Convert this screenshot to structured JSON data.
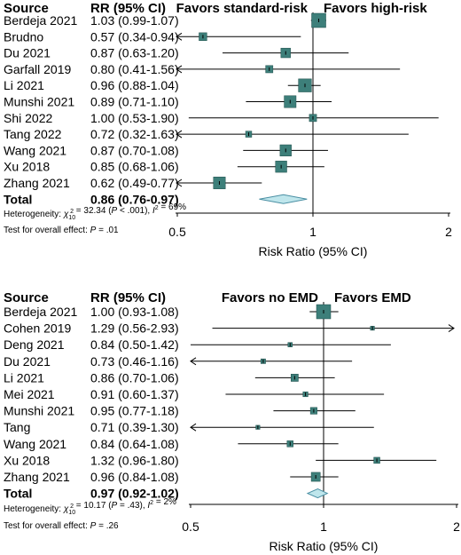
{
  "chart_data": [
    {
      "type": "forest",
      "header": {
        "source": "Source",
        "rr": "RR (95% CI)",
        "favors_left": "Favors standard-risk",
        "favors_right": "Favors high-risk"
      },
      "studies": [
        {
          "label": "Berdeja 2021",
          "ci_text": "1.03 (0.99-1.07)",
          "rr": 1.03,
          "lo": 0.99,
          "hi": 1.07,
          "w": 1.0
        },
        {
          "label": "Brudno",
          "ci_text": "0.57 (0.34-0.94)",
          "rr": 0.57,
          "lo": 0.34,
          "hi": 0.94,
          "w": 0.45
        },
        {
          "label": "Du 2021",
          "ci_text": "0.87 (0.63-1.20)",
          "rr": 0.87,
          "lo": 0.63,
          "hi": 1.2,
          "w": 0.6
        },
        {
          "label": "Garfall 2019",
          "ci_text": "0.80 (0.41-1.56)",
          "rr": 0.8,
          "lo": 0.41,
          "hi": 1.56,
          "w": 0.4
        },
        {
          "label": "Li 2021",
          "ci_text": "0.96 (0.88-1.04)",
          "rr": 0.96,
          "lo": 0.88,
          "hi": 1.04,
          "w": 0.9
        },
        {
          "label": "Munshi 2021",
          "ci_text": "0.89 (0.71-1.10)",
          "rr": 0.89,
          "lo": 0.71,
          "hi": 1.1,
          "w": 0.8
        },
        {
          "label": "Shi 2022",
          "ci_text": "1.00 (0.53-1.90)",
          "rr": 1.0,
          "lo": 0.53,
          "hi": 1.9,
          "w": 0.4
        },
        {
          "label": "Tang 2022",
          "ci_text": "0.72 (0.32-1.63)",
          "rr": 0.72,
          "lo": 0.32,
          "hi": 1.63,
          "w": 0.3
        },
        {
          "label": "Wang 2021",
          "ci_text": "0.87 (0.70-1.08)",
          "rr": 0.87,
          "lo": 0.7,
          "hi": 1.08,
          "w": 0.75
        },
        {
          "label": "Xu 2018",
          "ci_text": "0.85 (0.68-1.06)",
          "rr": 0.85,
          "lo": 0.68,
          "hi": 1.06,
          "w": 0.75
        },
        {
          "label": "Zhang 2021",
          "ci_text": "0.62 (0.49-0.77)",
          "rr": 0.62,
          "lo": 0.49,
          "hi": 0.77,
          "w": 0.8
        }
      ],
      "total": {
        "label": "Total",
        "ci_text": "0.86 (0.76-0.97)",
        "rr": 0.86,
        "lo": 0.76,
        "hi": 0.97
      },
      "heterogeneity": {
        "prefix": "Heterogeneity: ",
        "chi": "χ",
        "sub": "10",
        "sup": "2",
        "mid": " = 32.34 (",
        "p": "P",
        "pval": " < .001), ",
        "i": "I",
        "isup": "2",
        "ival": " = 69%"
      },
      "overall": {
        "prefix": "Test for overall effect: ",
        "p": "P",
        "val": " = .01"
      },
      "x_ticks": [
        "0.5",
        "1",
        "2"
      ],
      "x_tick_values": [
        0.5,
        1,
        2
      ],
      "xlabel": "Risk Ratio (95% CI)",
      "scale": "log",
      "marker_color": "#3d7f7a",
      "diamond_color": "#bfe6ec"
    },
    {
      "type": "forest",
      "header": {
        "source": "Source",
        "rr": "RR (95% CI)",
        "favors_left": "Favors no EMD",
        "favors_right": "Favors EMD"
      },
      "studies": [
        {
          "label": "Berdeja 2021",
          "ci_text": "1.00 (0.93-1.08)",
          "rr": 1.0,
          "lo": 0.93,
          "hi": 1.08,
          "w": 1.0
        },
        {
          "label": "Cohen 2019",
          "ci_text": "1.29 (0.56-2.93)",
          "rr": 1.29,
          "lo": 0.56,
          "hi": 2.93,
          "w": 0.12
        },
        {
          "label": "Deng 2021",
          "ci_text": "0.84 (0.50-1.42)",
          "rr": 0.84,
          "lo": 0.5,
          "hi": 1.42,
          "w": 0.15
        },
        {
          "label": "Du 2021",
          "ci_text": "0.73 (0.46-1.16)",
          "rr": 0.73,
          "lo": 0.46,
          "hi": 1.16,
          "w": 0.18
        },
        {
          "label": "Li 2021",
          "ci_text": "0.86 (0.70-1.06)",
          "rr": 0.86,
          "lo": 0.7,
          "hi": 1.06,
          "w": 0.4
        },
        {
          "label": "Mei 2021",
          "ci_text": "0.91 (0.60-1.37)",
          "rr": 0.91,
          "lo": 0.6,
          "hi": 1.37,
          "w": 0.2
        },
        {
          "label": "Munshi 2021",
          "ci_text": "0.95 (0.77-1.18)",
          "rr": 0.95,
          "lo": 0.77,
          "hi": 1.18,
          "w": 0.35
        },
        {
          "label": "Tang",
          "ci_text": "0.71 (0.39-1.30)",
          "rr": 0.71,
          "lo": 0.39,
          "hi": 1.3,
          "w": 0.12
        },
        {
          "label": "Wang 2021",
          "ci_text": "0.84 (0.64-1.08)",
          "rr": 0.84,
          "lo": 0.64,
          "hi": 1.08,
          "w": 0.3
        },
        {
          "label": "Xu 2018",
          "ci_text": "1.32 (0.96-1.80)",
          "rr": 1.32,
          "lo": 0.96,
          "hi": 1.8,
          "w": 0.3
        },
        {
          "label": "Zhang 2021",
          "ci_text": "0.96 (0.84-1.08)",
          "rr": 0.96,
          "lo": 0.84,
          "hi": 1.08,
          "w": 0.55
        }
      ],
      "total": {
        "label": "Total",
        "ci_text": "0.97 (0.92-1.02)",
        "rr": 0.97,
        "lo": 0.92,
        "hi": 1.02
      },
      "heterogeneity": {
        "prefix": "Heterogeneity: ",
        "chi": "χ",
        "sub": "10",
        "sup": "2",
        "mid": " = 10.17 (",
        "p": "P",
        "pval": " = .43), ",
        "i": "I",
        "isup": "2",
        "ival": " = 2%"
      },
      "overall": {
        "prefix": "Test for overall effect: ",
        "p": "P",
        "val": " = .26"
      },
      "x_ticks": [
        "0.5",
        "1",
        "2"
      ],
      "x_tick_values": [
        0.5,
        1,
        2
      ],
      "xlabel": "Risk Ratio (95% CI)",
      "scale": "log",
      "marker_color": "#3d7f7a",
      "diamond_color": "#bfe6ec"
    }
  ]
}
